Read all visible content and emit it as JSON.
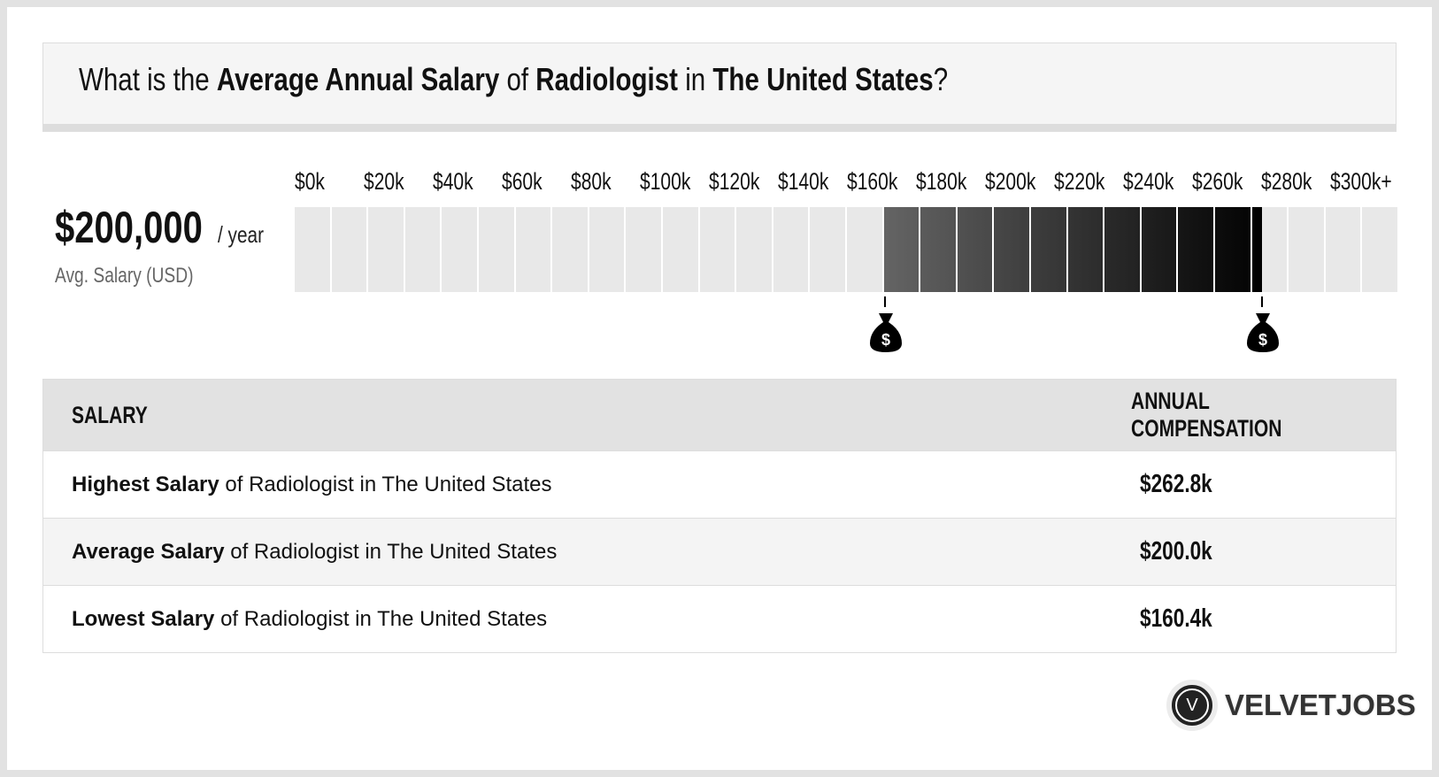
{
  "title": {
    "p1": "What is the ",
    "b1": "Average Annual Salary",
    "p2": " of ",
    "b2": "Radiologist",
    "p3": " in ",
    "b3": "The United States",
    "p4": "?"
  },
  "summary": {
    "value": "$200,000",
    "unit": "/ year",
    "label": "Avg. Salary (USD)"
  },
  "chart_data": {
    "type": "bar",
    "tick_labels": [
      "$0k",
      "$20k",
      "$40k",
      "$60k",
      "$80k",
      "$100k",
      "$120k",
      "$140k",
      "$160k",
      "$180k",
      "$200k",
      "$220k",
      "$240k",
      "$260k",
      "$280k",
      "$300k+"
    ],
    "xlim": [
      0,
      300
    ],
    "segment_step": 10,
    "range": {
      "low": 160.4,
      "high": 262.8
    },
    "markers": [
      160.4,
      262.8
    ],
    "marker_icon": "money-bag-icon"
  },
  "table": {
    "headers": [
      "SALARY",
      "ANNUAL COMPENSATION"
    ],
    "rows": [
      {
        "bold": "Highest Salary",
        "rest": " of Radiologist in The United States",
        "value": "$262.8k"
      },
      {
        "bold": "Average Salary",
        "rest": " of Radiologist in The United States",
        "value": "$200.0k"
      },
      {
        "bold": "Lowest Salary",
        "rest": " of Radiologist in The United States",
        "value": "$160.4k"
      }
    ]
  },
  "logo": {
    "letter": "V",
    "text": "VELVETJOBS"
  }
}
